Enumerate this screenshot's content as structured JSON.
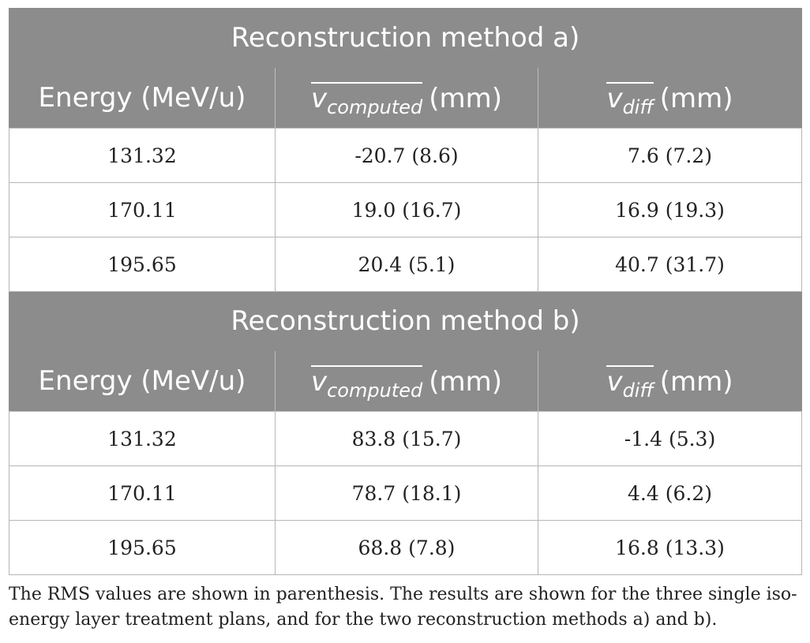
{
  "sections": [
    {
      "title": "Reconstruction method a)",
      "headers": {
        "energy": "Energy (MeV/u)",
        "computed_base": "v",
        "computed_sub": "computed",
        "computed_unit": "(mm)",
        "diff_base": "v",
        "diff_sub": "diff",
        "diff_unit": "(mm)"
      },
      "rows": [
        {
          "energy": "131.32",
          "computed": "-20.7 (8.6)",
          "diff": "7.6 (7.2)"
        },
        {
          "energy": "170.11",
          "computed": "19.0 (16.7)",
          "diff": "16.9 (19.3)"
        },
        {
          "energy": "195.65",
          "computed": "20.4 (5.1)",
          "diff": "40.7 (31.7)"
        }
      ]
    },
    {
      "title": "Reconstruction method b)",
      "headers": {
        "energy": "Energy (MeV/u)",
        "computed_base": "v",
        "computed_sub": "computed",
        "computed_unit": "(mm)",
        "diff_base": "v",
        "diff_sub": "diff",
        "diff_unit": "(mm)"
      },
      "rows": [
        {
          "energy": "131.32",
          "computed": "83.8 (15.7)",
          "diff": "-1.4 (5.3)"
        },
        {
          "energy": "170.11",
          "computed": "78.7 (18.1)",
          "diff": "4.4 (6.2)"
        },
        {
          "energy": "195.65",
          "computed": "68.8 (7.8)",
          "diff": "16.8 (13.3)"
        }
      ]
    }
  ],
  "caption": "The RMS values are shown in parenthesis. The results are shown for the three single iso-energy layer treatment plans, and for the two reconstruction methods a) and b).",
  "colors": {
    "header_bg": "#8c8c8c",
    "header_text": "#ffffff",
    "grid": "#b5b5b5",
    "body_text": "#222222"
  }
}
